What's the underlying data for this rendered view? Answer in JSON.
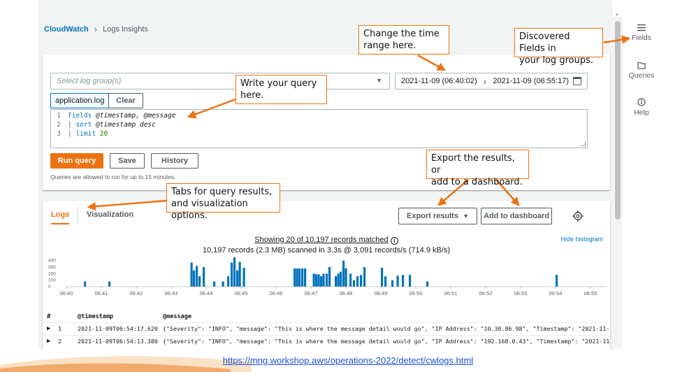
{
  "breadcrumb": {
    "root": "CloudWatch",
    "current": "Logs Insights"
  },
  "query": {
    "log_group_placeholder": "Select log group(s)",
    "time_start": "2021-11-09 (06:40:02)",
    "time_end": "2021-11-09 (06:55:17)",
    "selected_group": "application.log",
    "clear_label": "Clear",
    "lines": [
      {
        "num": "1",
        "kw": "fields",
        "rest": " @timestamp, @message"
      },
      {
        "num": "2",
        "kw": "sort",
        "rest": " @timestamp desc"
      },
      {
        "num": "3",
        "kw": "limit",
        "rest": " 20"
      }
    ],
    "run_label": "Run query",
    "save_label": "Save",
    "history_label": "History",
    "hint": "Queries are allowed to run for up to 15 minutes."
  },
  "results": {
    "tabs": {
      "logs": "Logs",
      "visualization": "Visualization"
    },
    "export_label": "Export results",
    "dashboard_label": "Add to dashboard",
    "summary_line1": "Showing 20 of 10,197 records matched",
    "summary_line2": "10,197 records (2.3 MB) scanned in 3.3s @ 3,091 records/s (714.9 kB/s)",
    "hide_histogram": "Hide histogram",
    "columns": {
      "num": "#",
      "timestamp": "@timestamp",
      "message": "@message"
    },
    "rows": [
      {
        "num": "1",
        "timestamp": "2021-11-09T06:54:17.620",
        "message": "{\"Severity\": \"INFO\", \"message\": \"This is where the message detail would go\", \"IP Address\": \"10.30.86.98\", \"Timestamp\": \"2021-11-09T11:"
      },
      {
        "num": "2",
        "timestamp": "2021-11-09T06:54:13.380",
        "message": "{\"Severity\": \"INFO\", \"message\": \"This is where the message detail would go\", \"IP Address\": \"192.168.0.43\", \"Timestamp\": \"2021-11-09T11"
      }
    ]
  },
  "chart_data": {
    "type": "bar",
    "x_ticks": [
      "06:40",
      "06:41",
      "06:42",
      "06:43",
      "06:44",
      "06:45",
      "06:46",
      "06:47",
      "06:48",
      "06:49",
      "06:50",
      "06:51",
      "06:52",
      "06:53",
      "06:54",
      "06:55"
    ],
    "y_ticks": [
      "0",
      "100",
      "200",
      "300",
      "400"
    ],
    "ylim": [
      0,
      450
    ],
    "bins": [
      {
        "x": 0.5,
        "v": 80
      },
      {
        "x": 1.2,
        "v": 80
      },
      {
        "x": 3.55,
        "v": 370
      },
      {
        "x": 3.62,
        "v": 250
      },
      {
        "x": 3.7,
        "v": 320
      },
      {
        "x": 3.78,
        "v": 160
      },
      {
        "x": 3.9,
        "v": 300
      },
      {
        "x": 4.2,
        "v": 80
      },
      {
        "x": 4.45,
        "v": 80
      },
      {
        "x": 4.6,
        "v": 160
      },
      {
        "x": 4.7,
        "v": 370
      },
      {
        "x": 4.78,
        "v": 480
      },
      {
        "x": 4.86,
        "v": 250
      },
      {
        "x": 4.93,
        "v": 380
      },
      {
        "x": 5.05,
        "v": 290
      },
      {
        "x": 6.5,
        "v": 280
      },
      {
        "x": 6.57,
        "v": 280
      },
      {
        "x": 6.64,
        "v": 280
      },
      {
        "x": 6.72,
        "v": 280
      },
      {
        "x": 6.8,
        "v": 280
      },
      {
        "x": 7.05,
        "v": 200
      },
      {
        "x": 7.12,
        "v": 190
      },
      {
        "x": 7.19,
        "v": 190
      },
      {
        "x": 7.26,
        "v": 160
      },
      {
        "x": 7.33,
        "v": 200
      },
      {
        "x": 7.42,
        "v": 200
      },
      {
        "x": 7.5,
        "v": 300
      },
      {
        "x": 7.68,
        "v": 160
      },
      {
        "x": 7.75,
        "v": 200
      },
      {
        "x": 7.82,
        "v": 230
      },
      {
        "x": 7.9,
        "v": 400
      },
      {
        "x": 7.97,
        "v": 280
      },
      {
        "x": 8.1,
        "v": 200
      },
      {
        "x": 8.2,
        "v": 100
      },
      {
        "x": 8.3,
        "v": 160
      },
      {
        "x": 8.4,
        "v": 180
      },
      {
        "x": 8.5,
        "v": 300
      },
      {
        "x": 9.0,
        "v": 290
      },
      {
        "x": 9.1,
        "v": 160
      },
      {
        "x": 9.3,
        "v": 100
      },
      {
        "x": 9.45,
        "v": 170
      },
      {
        "x": 9.6,
        "v": 180
      },
      {
        "x": 9.8,
        "v": 180
      },
      {
        "x": 10.3,
        "v": 80
      },
      {
        "x": 14.0,
        "v": 180
      }
    ]
  },
  "sidebar": {
    "fields": "Fields",
    "queries": "Queries",
    "help": "Help"
  },
  "callouts": {
    "time": [
      "Change the time",
      "range here."
    ],
    "fields": [
      "Discovered Fields in",
      "your log groups."
    ],
    "query": [
      "Write your query",
      "here."
    ],
    "export": [
      "Export the results, or",
      "add to a dashboard."
    ],
    "tabs": [
      "Tabs for query results,",
      "and visualization options."
    ]
  },
  "footer_link": "https://mng.workshop.aws/operations-2022/detect/cwlogs.html",
  "colors": {
    "accent": "#ec7211",
    "link": "#0073bb",
    "bar": "#0073bb"
  }
}
